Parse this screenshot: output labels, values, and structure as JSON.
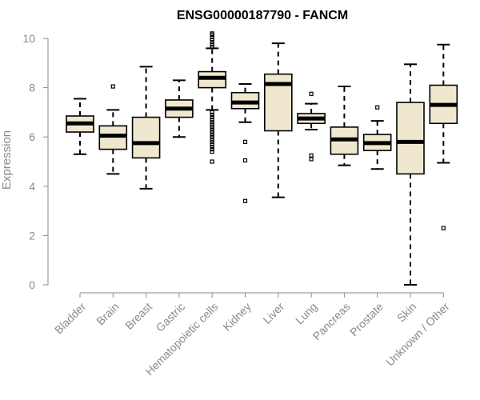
{
  "chart_data": {
    "type": "box",
    "title": "ENSG00000187790 - FANCM",
    "xlabel": "",
    "ylabel": "Expression",
    "ylim": [
      0,
      10
    ],
    "yticks": [
      0,
      2,
      4,
      6,
      8,
      10
    ],
    "categories": [
      "Bladder",
      "Brain",
      "Breast",
      "Gastric",
      "Hematopoietic cells",
      "Kidney",
      "Liver",
      "Lung",
      "Pancreas",
      "Prostate",
      "Skin",
      "Unknown / Other"
    ],
    "boxes": [
      {
        "name": "Bladder",
        "whislo": 5.3,
        "q1": 6.2,
        "med": 6.55,
        "q3": 6.85,
        "whishi": 7.55,
        "fliers": []
      },
      {
        "name": "Brain",
        "whislo": 4.5,
        "q1": 5.5,
        "med": 6.05,
        "q3": 6.45,
        "whishi": 7.1,
        "fliers": [
          8.05
        ]
      },
      {
        "name": "Breast",
        "whislo": 3.9,
        "q1": 5.15,
        "med": 5.75,
        "q3": 6.8,
        "whishi": 8.85,
        "fliers": []
      },
      {
        "name": "Gastric",
        "whislo": 6.0,
        "q1": 6.8,
        "med": 7.15,
        "q3": 7.5,
        "whishi": 8.3,
        "fliers": []
      },
      {
        "name": "Hematopoietic cells",
        "whislo": 7.1,
        "q1": 8.0,
        "med": 8.4,
        "q3": 8.65,
        "whishi": 9.6,
        "fliers": [
          5.0,
          5.4,
          5.5,
          5.6,
          5.7,
          5.8,
          5.9,
          6.0,
          6.1,
          6.2,
          6.3,
          6.4,
          6.5,
          6.6,
          6.7,
          6.8,
          6.9,
          7.0,
          9.65,
          9.75,
          9.85,
          9.95,
          10.05,
          10.15,
          10.2
        ]
      },
      {
        "name": "Kidney",
        "whislo": 6.6,
        "q1": 7.15,
        "med": 7.4,
        "q3": 7.8,
        "whishi": 8.15,
        "fliers": [
          5.8,
          5.05,
          3.4
        ]
      },
      {
        "name": "Liver",
        "whislo": 3.55,
        "q1": 6.25,
        "med": 8.15,
        "q3": 8.55,
        "whishi": 9.8,
        "fliers": []
      },
      {
        "name": "Lung",
        "whislo": 6.3,
        "q1": 6.55,
        "med": 6.75,
        "q3": 6.95,
        "whishi": 7.35,
        "fliers": [
          7.75,
          5.25,
          5.1
        ]
      },
      {
        "name": "Pancreas",
        "whislo": 4.85,
        "q1": 5.3,
        "med": 5.9,
        "q3": 6.4,
        "whishi": 8.05,
        "fliers": []
      },
      {
        "name": "Prostate",
        "whislo": 4.7,
        "q1": 5.45,
        "med": 5.75,
        "q3": 6.1,
        "whishi": 6.65,
        "fliers": [
          7.2
        ]
      },
      {
        "name": "Skin",
        "whislo": 0.0,
        "q1": 4.5,
        "med": 5.8,
        "q3": 7.4,
        "whishi": 8.95,
        "fliers": []
      },
      {
        "name": "Unknown / Other",
        "whislo": 4.95,
        "q1": 6.55,
        "med": 7.3,
        "q3": 8.1,
        "whishi": 9.75,
        "fliers": [
          2.3
        ]
      }
    ],
    "colors": {
      "box_fill": "#efe8cf",
      "box_stroke": "#000000",
      "axis": "#8a8a8a"
    },
    "grid": false,
    "legend": "none"
  }
}
